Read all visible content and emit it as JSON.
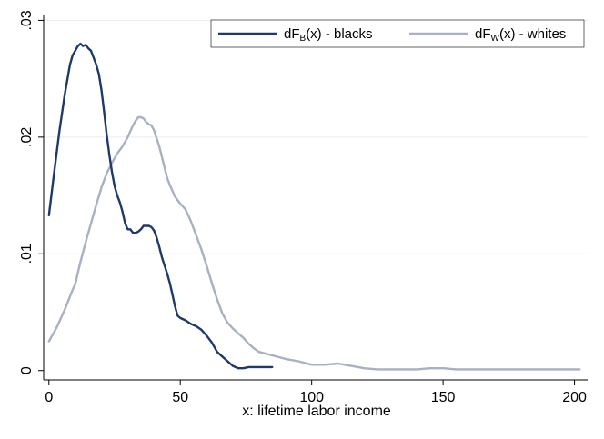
{
  "chart_data": {
    "type": "line",
    "title": "",
    "xlabel": "x: lifetime labor income",
    "ylabel": "",
    "xlim": [
      -2,
      205
    ],
    "ylim": [
      -0.0008,
      0.0305
    ],
    "x_ticks": [
      0,
      50,
      100,
      150,
      200
    ],
    "x_tick_labels": [
      "0",
      "50",
      "100",
      "150",
      "200"
    ],
    "y_ticks": [
      0,
      0.01,
      0.02,
      0.03
    ],
    "y_tick_labels": [
      "0",
      ".01",
      ".02",
      ".03"
    ],
    "grid": "horizontal",
    "legend_position": "top-right",
    "series": [
      {
        "name_main": "dF",
        "name_sub": "B",
        "name_rest": "(x) - blacks",
        "color": "#1f3a68",
        "x": [
          0,
          2,
          4,
          6,
          8,
          9,
          10,
          11,
          12,
          13,
          14,
          15,
          16,
          17,
          18,
          19,
          20,
          21,
          22,
          23,
          24,
          25,
          26,
          27,
          28,
          29,
          30,
          31,
          32,
          33,
          34,
          35,
          36,
          37,
          38,
          39,
          40,
          41,
          42,
          43,
          44,
          45,
          46,
          47,
          48,
          49,
          50,
          52,
          54,
          56,
          58,
          60,
          62,
          64,
          66,
          68,
          70,
          72,
          74,
          76,
          78,
          80,
          82,
          85
        ],
        "y": [
          0.0133,
          0.017,
          0.0205,
          0.0236,
          0.0262,
          0.027,
          0.0274,
          0.0278,
          0.028,
          0.0278,
          0.0279,
          0.0276,
          0.0274,
          0.0268,
          0.0262,
          0.0254,
          0.024,
          0.0222,
          0.0202,
          0.0185,
          0.017,
          0.0158,
          0.015,
          0.0144,
          0.0136,
          0.0126,
          0.0121,
          0.0121,
          0.0118,
          0.0118,
          0.0119,
          0.0121,
          0.0124,
          0.0124,
          0.0124,
          0.0123,
          0.012,
          0.0114,
          0.0106,
          0.0097,
          0.009,
          0.0083,
          0.0075,
          0.0065,
          0.0055,
          0.0047,
          0.0045,
          0.0043,
          0.004,
          0.0038,
          0.0035,
          0.003,
          0.0024,
          0.0016,
          0.0012,
          0.0008,
          0.0004,
          0.0002,
          0.0002,
          0.0003,
          0.0003,
          0.0003,
          0.0003,
          0.0003
        ]
      },
      {
        "name_main": "dF",
        "name_sub": "W",
        "name_rest": "(x) - whites",
        "color": "#a7b1c2",
        "x": [
          0,
          3,
          6,
          9,
          10,
          12,
          14,
          16,
          18,
          20,
          22,
          24,
          26,
          28,
          30,
          31,
          32,
          33,
          34,
          35,
          36,
          37,
          38,
          39,
          40,
          41,
          42,
          43,
          44,
          45,
          46,
          48,
          50,
          52,
          54,
          56,
          58,
          60,
          62,
          64,
          66,
          68,
          70,
          72,
          74,
          76,
          78,
          80,
          85,
          90,
          95,
          100,
          105,
          110,
          115,
          120,
          125,
          130,
          140,
          145,
          150,
          155,
          160,
          170,
          180,
          190,
          195,
          200,
          202
        ],
        "y": [
          0.0025,
          0.0037,
          0.0052,
          0.0069,
          0.0074,
          0.0093,
          0.011,
          0.0126,
          0.0142,
          0.0157,
          0.0169,
          0.0178,
          0.0186,
          0.0192,
          0.02,
          0.0205,
          0.021,
          0.0214,
          0.0217,
          0.0217,
          0.0216,
          0.0213,
          0.0211,
          0.021,
          0.0206,
          0.0199,
          0.0192,
          0.0183,
          0.0174,
          0.0165,
          0.0159,
          0.0149,
          0.0143,
          0.0138,
          0.0128,
          0.0116,
          0.0104,
          0.009,
          0.0075,
          0.0061,
          0.0049,
          0.0041,
          0.0036,
          0.0032,
          0.0028,
          0.0023,
          0.0019,
          0.0016,
          0.0013,
          0.001,
          0.0008,
          0.0005,
          0.0005,
          0.0006,
          0.0004,
          0.0002,
          0.0001,
          0.0001,
          0.0001,
          0.0002,
          0.0002,
          0.0001,
          0.0001,
          0.0001,
          0.0001,
          0.0001,
          0.0001,
          0.0001,
          0.0001
        ]
      }
    ]
  }
}
